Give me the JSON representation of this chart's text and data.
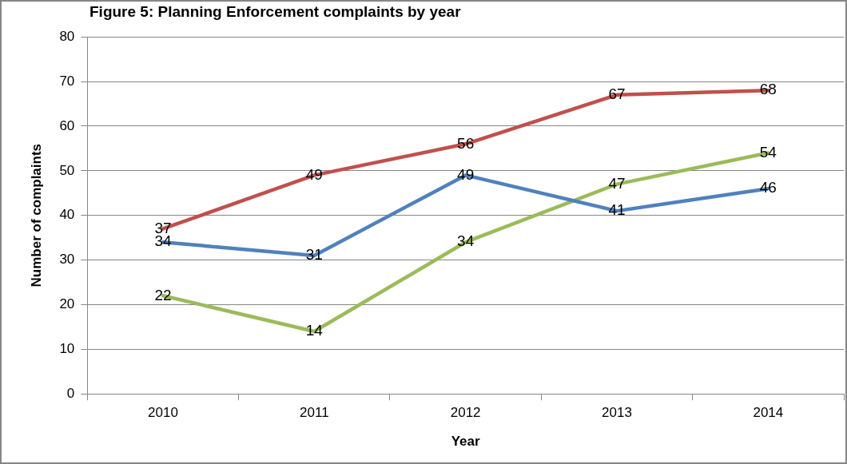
{
  "chart_data": {
    "type": "line",
    "title": "Figure 5: Planning Enforcement complaints by year",
    "xlabel": "Year",
    "ylabel": "Number of complaints",
    "categories": [
      "2010",
      "2011",
      "2012",
      "2013",
      "2014"
    ],
    "series": [
      {
        "color": "#4f81bd",
        "values": [
          34,
          31,
          49,
          41,
          46
        ]
      },
      {
        "color": "#c0504d",
        "values": [
          37,
          49,
          56,
          67,
          68
        ]
      },
      {
        "color": "#9bbb59",
        "values": [
          22,
          14,
          34,
          47,
          54
        ]
      }
    ],
    "ylim": [
      0,
      80
    ],
    "yticks": [
      0,
      10,
      20,
      30,
      40,
      50,
      60,
      70,
      80
    ],
    "grid": "y",
    "legend": false,
    "marker": "none",
    "line_style": "solid",
    "data_labels": true
  }
}
